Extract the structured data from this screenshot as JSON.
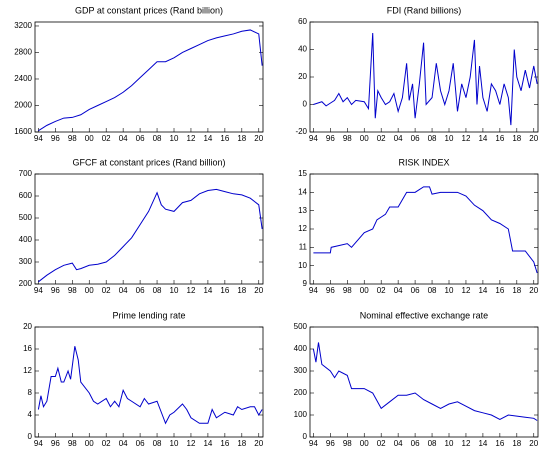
{
  "chart_data": [
    {
      "type": "line",
      "title": "GDP at constant prices (Rand billion)",
      "color": "#0000cc",
      "x": [
        1994,
        1995,
        1996,
        1997,
        1998,
        1999,
        2000,
        2001,
        2002,
        2003,
        2004,
        2005,
        2006,
        2007,
        2008,
        2009,
        2010,
        2011,
        2012,
        2013,
        2014,
        2015,
        2016,
        2017,
        2018,
        2019,
        2020,
        2020.4
      ],
      "values": [
        1620,
        1700,
        1760,
        1810,
        1820,
        1860,
        1940,
        2000,
        2060,
        2120,
        2200,
        2300,
        2420,
        2540,
        2660,
        2660,
        2720,
        2800,
        2860,
        2920,
        2980,
        3020,
        3050,
        3080,
        3120,
        3140,
        3080,
        2600
      ],
      "xlim": [
        1993.6,
        2020.5
      ],
      "ylim": [
        1600,
        3260
      ],
      "yticks": [
        1600,
        2000,
        2400,
        2800,
        3200
      ],
      "xticks": [
        {
          "value": 1994,
          "label": "94"
        },
        {
          "value": 1996,
          "label": "96"
        },
        {
          "value": 1998,
          "label": "98"
        },
        {
          "value": 2000,
          "label": "00"
        },
        {
          "value": 2002,
          "label": "02"
        },
        {
          "value": 2004,
          "label": "04"
        },
        {
          "value": 2006,
          "label": "06"
        },
        {
          "value": 2008,
          "label": "08"
        },
        {
          "value": 2010,
          "label": "10"
        },
        {
          "value": 2012,
          "label": "12"
        },
        {
          "value": 2014,
          "label": "14"
        },
        {
          "value": 2016,
          "label": "16"
        },
        {
          "value": 2018,
          "label": "18"
        },
        {
          "value": 2020,
          "label": "20"
        }
      ]
    },
    {
      "type": "line",
      "title": "FDI (Rand billions)",
      "color": "#0000cc",
      "x": [
        1994,
        1995,
        1995.5,
        1996,
        1996.5,
        1997,
        1997.5,
        1998,
        1998.5,
        1999,
        2000,
        2000.5,
        2001,
        2001.3,
        2001.6,
        2002,
        2002.5,
        2003,
        2003.5,
        2004,
        2004.5,
        2005,
        2005.3,
        2005.7,
        2006,
        2006.5,
        2007,
        2007.3,
        2008,
        2008.5,
        2009,
        2009.5,
        2010,
        2010.5,
        2011,
        2011.5,
        2012,
        2012.5,
        2013,
        2013.3,
        2013.6,
        2014,
        2014.5,
        2015,
        2015.5,
        2016,
        2016.5,
        2017,
        2017.3,
        2017.7,
        2018,
        2018.5,
        2019,
        2019.5,
        2020,
        2020.4
      ],
      "values": [
        0,
        2,
        -1,
        1,
        3,
        8,
        2,
        5,
        0,
        3,
        2,
        -3,
        52,
        -10,
        10,
        5,
        0,
        2,
        8,
        -5,
        5,
        30,
        3,
        15,
        -10,
        15,
        45,
        0,
        5,
        30,
        10,
        0,
        10,
        30,
        -5,
        15,
        5,
        20,
        47,
        0,
        28,
        5,
        -5,
        15,
        10,
        0,
        15,
        5,
        -15,
        40,
        20,
        10,
        25,
        12,
        28,
        15
      ],
      "xlim": [
        1993.6,
        2020.5
      ],
      "ylim": [
        -20,
        60
      ],
      "yticks": [
        -20,
        0,
        20,
        40,
        60
      ],
      "xticks": [
        {
          "value": 1994,
          "label": "94"
        },
        {
          "value": 1996,
          "label": "96"
        },
        {
          "value": 1998,
          "label": "98"
        },
        {
          "value": 2000,
          "label": "00"
        },
        {
          "value": 2002,
          "label": "02"
        },
        {
          "value": 2004,
          "label": "04"
        },
        {
          "value": 2006,
          "label": "06"
        },
        {
          "value": 2008,
          "label": "08"
        },
        {
          "value": 2010,
          "label": "10"
        },
        {
          "value": 2012,
          "label": "12"
        },
        {
          "value": 2014,
          "label": "14"
        },
        {
          "value": 2016,
          "label": "16"
        },
        {
          "value": 2018,
          "label": "18"
        },
        {
          "value": 2020,
          "label": "20"
        }
      ]
    },
    {
      "type": "line",
      "title": "GFCF at constant prices (Rand billion)",
      "color": "#0000cc",
      "x": [
        1994,
        1995,
        1996,
        1997,
        1998,
        1998.5,
        1999,
        2000,
        2001,
        2002,
        2003,
        2004,
        2005,
        2006,
        2007,
        2008,
        2008.5,
        2009,
        2010,
        2011,
        2012,
        2013,
        2014,
        2015,
        2016,
        2017,
        2018,
        2019,
        2020,
        2020.4
      ],
      "values": [
        210,
        240,
        265,
        285,
        295,
        265,
        270,
        285,
        290,
        300,
        330,
        370,
        410,
        470,
        530,
        615,
        560,
        540,
        530,
        570,
        580,
        610,
        625,
        630,
        620,
        610,
        605,
        590,
        560,
        450
      ],
      "xlim": [
        1993.6,
        2020.5
      ],
      "ylim": [
        200,
        700
      ],
      "yticks": [
        200,
        300,
        400,
        500,
        600,
        700
      ],
      "xticks": [
        {
          "value": 1994,
          "label": "94"
        },
        {
          "value": 1996,
          "label": "96"
        },
        {
          "value": 1998,
          "label": "98"
        },
        {
          "value": 2000,
          "label": "00"
        },
        {
          "value": 2002,
          "label": "02"
        },
        {
          "value": 2004,
          "label": "04"
        },
        {
          "value": 2006,
          "label": "06"
        },
        {
          "value": 2008,
          "label": "08"
        },
        {
          "value": 2010,
          "label": "10"
        },
        {
          "value": 2012,
          "label": "12"
        },
        {
          "value": 2014,
          "label": "14"
        },
        {
          "value": 2016,
          "label": "16"
        },
        {
          "value": 2018,
          "label": "18"
        },
        {
          "value": 2020,
          "label": "20"
        }
      ]
    },
    {
      "type": "line",
      "title": "RISK INDEX",
      "color": "#0000cc",
      "x": [
        1994,
        1996,
        1996.1,
        1998,
        1998.5,
        2000,
        2001,
        2001.5,
        2002.5,
        2003,
        2004,
        2005,
        2006,
        2007,
        2007.7,
        2008,
        2009,
        2011,
        2012,
        2013,
        2014,
        2015,
        2016,
        2017,
        2017.5,
        2019,
        2020,
        2020.4
      ],
      "values": [
        10.7,
        10.7,
        11,
        11.2,
        11,
        11.8,
        12,
        12.5,
        12.8,
        13.2,
        13.2,
        14,
        14,
        14.3,
        14.3,
        13.9,
        14,
        14,
        13.8,
        13.3,
        13,
        12.5,
        12.3,
        12,
        10.8,
        10.8,
        10.2,
        9.6
      ],
      "xlim": [
        1993.6,
        2020.5
      ],
      "ylim": [
        9,
        15
      ],
      "yticks": [
        9,
        10,
        11,
        12,
        13,
        14,
        15
      ],
      "xticks": [
        {
          "value": 1994,
          "label": "94"
        },
        {
          "value": 1996,
          "label": "96"
        },
        {
          "value": 1998,
          "label": "98"
        },
        {
          "value": 2000,
          "label": "00"
        },
        {
          "value": 2002,
          "label": "02"
        },
        {
          "value": 2004,
          "label": "04"
        },
        {
          "value": 2006,
          "label": "06"
        },
        {
          "value": 2008,
          "label": "08"
        },
        {
          "value": 2010,
          "label": "10"
        },
        {
          "value": 2012,
          "label": "12"
        },
        {
          "value": 2014,
          "label": "14"
        },
        {
          "value": 2016,
          "label": "16"
        },
        {
          "value": 2018,
          "label": "18"
        },
        {
          "value": 2020,
          "label": "20"
        }
      ]
    },
    {
      "type": "line",
      "title": "Prime lending rate",
      "color": "#0000cc",
      "x": [
        1994,
        1994.3,
        1994.6,
        1995,
        1995.5,
        1996,
        1996.3,
        1996.7,
        1997,
        1997.5,
        1997.8,
        1998.3,
        1998.7,
        1999,
        2000,
        2000.5,
        2001,
        2002,
        2002.5,
        2003,
        2003.5,
        2004,
        2004.5,
        2005,
        2006,
        2006.5,
        2007,
        2008,
        2008.5,
        2009,
        2009.5,
        2010,
        2011,
        2011.5,
        2012,
        2013,
        2014,
        2014.5,
        2015,
        2016,
        2017,
        2017.5,
        2018,
        2019,
        2019.5,
        2020,
        2020.4
      ],
      "values": [
        5,
        7.5,
        5.5,
        6.5,
        11,
        11,
        12.5,
        10,
        10,
        12,
        10.5,
        16.5,
        14,
        10,
        8,
        6.5,
        6,
        7,
        5.5,
        6.5,
        5.5,
        8.5,
        7,
        6.5,
        5.5,
        7,
        6,
        6.5,
        4.5,
        2.5,
        4,
        4.5,
        6,
        5,
        3.5,
        2.5,
        2.5,
        5,
        3.5,
        4.5,
        4,
        5.5,
        5,
        5.5,
        5.5,
        4,
        5
      ],
      "xlim": [
        1993.6,
        2020.5
      ],
      "ylim": [
        0,
        20
      ],
      "yticks": [
        0,
        4,
        8,
        12,
        16,
        20
      ],
      "xticks": [
        {
          "value": 1994,
          "label": "94"
        },
        {
          "value": 1996,
          "label": "96"
        },
        {
          "value": 1998,
          "label": "98"
        },
        {
          "value": 2000,
          "label": "00"
        },
        {
          "value": 2002,
          "label": "02"
        },
        {
          "value": 2004,
          "label": "04"
        },
        {
          "value": 2006,
          "label": "06"
        },
        {
          "value": 2008,
          "label": "08"
        },
        {
          "value": 2010,
          "label": "10"
        },
        {
          "value": 2012,
          "label": "12"
        },
        {
          "value": 2014,
          "label": "14"
        },
        {
          "value": 2016,
          "label": "16"
        },
        {
          "value": 2018,
          "label": "18"
        },
        {
          "value": 2020,
          "label": "20"
        }
      ]
    },
    {
      "type": "line",
      "title": "Nominal effective exchange rate",
      "color": "#0000cc",
      "x": [
        1994,
        1994.3,
        1994.6,
        1995,
        1996,
        1996.5,
        1997,
        1998,
        1998.5,
        2000,
        2001,
        2002,
        2003,
        2004,
        2005,
        2006,
        2007,
        2008,
        2009,
        2010,
        2011,
        2012,
        2013,
        2014,
        2015,
        2016,
        2017,
        2018,
        2019,
        2020,
        2020.4
      ],
      "values": [
        400,
        340,
        430,
        330,
        300,
        270,
        300,
        280,
        220,
        220,
        200,
        130,
        160,
        190,
        190,
        200,
        170,
        150,
        130,
        150,
        160,
        140,
        120,
        110,
        100,
        80,
        100,
        95,
        90,
        85,
        75
      ],
      "xlim": [
        1993.6,
        2020.5
      ],
      "ylim": [
        0,
        500
      ],
      "yticks": [
        0,
        100,
        200,
        300,
        400,
        500
      ],
      "xticks": [
        {
          "value": 1994,
          "label": "94"
        },
        {
          "value": 1996,
          "label": "96"
        },
        {
          "value": 1998,
          "label": "98"
        },
        {
          "value": 2000,
          "label": "00"
        },
        {
          "value": 2002,
          "label": "02"
        },
        {
          "value": 2004,
          "label": "04"
        },
        {
          "value": 2006,
          "label": "06"
        },
        {
          "value": 2008,
          "label": "08"
        },
        {
          "value": 2010,
          "label": "10"
        },
        {
          "value": 2012,
          "label": "12"
        },
        {
          "value": 2014,
          "label": "14"
        },
        {
          "value": 2016,
          "label": "16"
        },
        {
          "value": 2018,
          "label": "18"
        },
        {
          "value": 2020,
          "label": "20"
        }
      ]
    }
  ]
}
